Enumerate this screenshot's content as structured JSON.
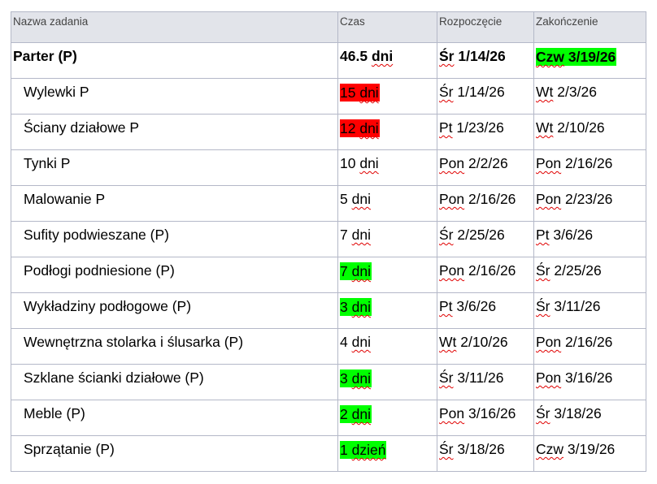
{
  "colors": {
    "header_bg": "#e2e4ea",
    "grid_line": "#b4b8c8",
    "highlight_red": "#ff0000",
    "highlight_green": "#00ff00",
    "spell_underline": "#e00000"
  },
  "headers": {
    "name": "Nazwa zadania",
    "duration": "Czas",
    "start": "Rozpoczęcie",
    "finish": "Zakończenie"
  },
  "summary": {
    "name": "Parter (P)",
    "duration_num": "46.5",
    "duration_unit": "dni",
    "start_day": "Śr",
    "start_date": "1/14/26",
    "finish_day": "Czw",
    "finish_date": "3/19/26"
  },
  "tasks": [
    {
      "name": "Wylewki P",
      "duration_num": "15",
      "duration_unit": "dni",
      "start_day": "Śr",
      "start_date": "1/14/26",
      "finish_day": "Wt",
      "finish_date": "2/3/26"
    },
    {
      "name": "Ściany działowe P",
      "duration_num": "12",
      "duration_unit": "dni",
      "start_day": "Pt",
      "start_date": "1/23/26",
      "finish_day": "Wt",
      "finish_date": "2/10/26"
    },
    {
      "name": "Tynki P",
      "duration_num": "10",
      "duration_unit": "dni",
      "start_day": "Pon",
      "start_date": "2/2/26",
      "finish_day": "Pon",
      "finish_date": "2/16/26"
    },
    {
      "name": "Malowanie P",
      "duration_num": "5",
      "duration_unit": "dni",
      "start_day": "Pon",
      "start_date": "2/16/26",
      "finish_day": "Pon",
      "finish_date": "2/23/26"
    },
    {
      "name": "Sufity podwieszane (P)",
      "duration_num": "7",
      "duration_unit": "dni",
      "start_day": "Śr",
      "start_date": "2/25/26",
      "finish_day": "Pt",
      "finish_date": "3/6/26"
    },
    {
      "name": "Podłogi podniesione (P)",
      "duration_num": "7",
      "duration_unit": "dni",
      "start_day": "Pon",
      "start_date": "2/16/26",
      "finish_day": "Śr",
      "finish_date": "2/25/26"
    },
    {
      "name": "Wykładziny podłogowe (P)",
      "duration_num": "3",
      "duration_unit": "dni",
      "start_day": "Pt",
      "start_date": "3/6/26",
      "finish_day": "Śr",
      "finish_date": "3/11/26"
    },
    {
      "name": "Wewnętrzna stolarka i ślusarka (P)",
      "duration_num": "4",
      "duration_unit": "dni",
      "start_day": "Wt",
      "start_date": "2/10/26",
      "finish_day": "Pon",
      "finish_date": "2/16/26"
    },
    {
      "name": "Szklane ścianki działowe (P)",
      "duration_num": "3",
      "duration_unit": "dni",
      "start_day": "Śr",
      "start_date": "3/11/26",
      "finish_day": "Pon",
      "finish_date": "3/16/26"
    },
    {
      "name": "Meble (P)",
      "duration_num": "2",
      "duration_unit": "dni",
      "start_day": "Pon",
      "start_date": "3/16/26",
      "finish_day": "Śr",
      "finish_date": "3/18/26"
    },
    {
      "name": "Sprzątanie (P)",
      "duration_num": "1",
      "duration_unit": "dzień",
      "start_day": "Śr",
      "start_date": "3/18/26",
      "finish_day": "Czw",
      "finish_date": "3/19/26"
    }
  ]
}
